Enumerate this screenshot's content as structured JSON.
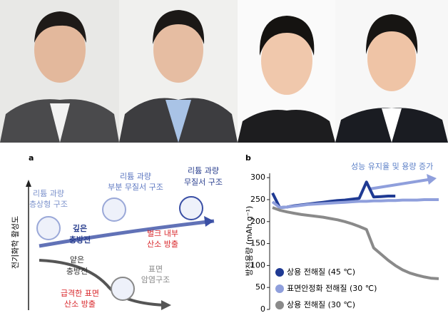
{
  "diagram": {
    "panel_label": "a",
    "y_axis_label": "전기화학 활성도",
    "structures": [
      [
        "리튬 과량",
        "층상형 구조"
      ],
      [
        "리튬 과량",
        "부분 무질서 구조"
      ],
      [
        "리튬 과량",
        "무질서 구조"
      ]
    ],
    "processes": [
      [
        "깊은",
        "충방전"
      ],
      [
        "얕은",
        "충방전"
      ]
    ],
    "effects": [
      [
        "벌크 내부",
        "산소 방출"
      ],
      [
        "표면",
        "암염구조"
      ],
      [
        "급격한 표면",
        "산소 방출"
      ]
    ]
  },
  "chart_data": {
    "type": "line",
    "panel_label": "b",
    "y_label": "방전용량 (mAh g⁻¹)",
    "annotation": "성능 유지율 및 용량 증가",
    "ylim": [
      0,
      310
    ],
    "yticks": [
      0,
      50,
      100,
      150,
      200,
      250,
      300
    ],
    "series": [
      {
        "name": "상용 전해질 (45 ℃)",
        "color": "#1f3a93",
        "values": [
          265,
          232,
          233,
          236,
          238,
          240,
          242,
          244,
          246,
          248,
          249,
          251,
          253,
          290,
          256,
          257,
          258,
          258
        ]
      },
      {
        "name": "표면안정화 전해질 (30 ℃)",
        "color": "#8f9fdc",
        "values": [
          245,
          232,
          233,
          235,
          237,
          239,
          240,
          241,
          242,
          243,
          244,
          245,
          246,
          246,
          247,
          247,
          248,
          248,
          249,
          249,
          249,
          250,
          250,
          250
        ]
      },
      {
        "name": "상용 전해질 (30 ℃)",
        "color": "#8a8a8a",
        "values": [
          232,
          226,
          222,
          219,
          216,
          214,
          212,
          210,
          207,
          204,
          200,
          195,
          189,
          182,
          140,
          126,
          112,
          100,
          90,
          83,
          78,
          74,
          71,
          70
        ]
      }
    ]
  }
}
